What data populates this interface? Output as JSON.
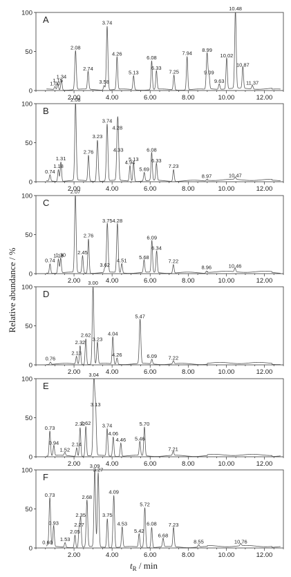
{
  "figure": {
    "y_axis_label": "Relative abundance / %",
    "x_axis_label_symbol": "t",
    "x_axis_label_subscript": "R",
    "x_axis_label_unit": " / min"
  },
  "chart_data": [
    {
      "type": "line",
      "panel": "A",
      "xlim": [
        0,
        13
      ],
      "ylim": [
        0,
        100
      ],
      "xticks": [
        "2.00",
        "4.00",
        "6.00",
        "8.00",
        "10.00",
        "12.00"
      ],
      "yticks": [
        "0",
        "50",
        "100"
      ],
      "peaks": [
        {
          "rt": 1.0,
          "abundance": 4,
          "label": "1.00"
        },
        {
          "rt": 1.15,
          "abundance": 8,
          "label": "1.15"
        },
        {
          "rt": 1.34,
          "abundance": 13,
          "label": "1.34"
        },
        {
          "rt": 2.08,
          "abundance": 50,
          "label": "2.08"
        },
        {
          "rt": 2.74,
          "abundance": 23,
          "label": "2.74"
        },
        {
          "rt": 3.58,
          "abundance": 6,
          "label": "3.58"
        },
        {
          "rt": 3.74,
          "abundance": 82,
          "label": "3.74"
        },
        {
          "rt": 4.26,
          "abundance": 42,
          "label": "4.26"
        },
        {
          "rt": 5.13,
          "abundance": 18,
          "label": "5.13"
        },
        {
          "rt": 6.08,
          "abundance": 37,
          "label": "6.08"
        },
        {
          "rt": 6.33,
          "abundance": 24,
          "label": "6.33"
        },
        {
          "rt": 7.25,
          "abundance": 19,
          "label": "7.25"
        },
        {
          "rt": 7.94,
          "abundance": 43,
          "label": "7.94"
        },
        {
          "rt": 8.99,
          "abundance": 47,
          "label": "8.99"
        },
        {
          "rt": 9.09,
          "abundance": 18,
          "label": "9.09"
        },
        {
          "rt": 9.63,
          "abundance": 7,
          "label": "9.63"
        },
        {
          "rt": 10.02,
          "abundance": 40,
          "label": "10.02"
        },
        {
          "rt": 10.48,
          "abundance": 100,
          "label": "10.48"
        },
        {
          "rt": 10.87,
          "abundance": 28,
          "label": "10.87"
        },
        {
          "rt": 11.37,
          "abundance": 5,
          "label": "11.37"
        }
      ]
    },
    {
      "type": "line",
      "panel": "B",
      "xlim": [
        0,
        13
      ],
      "ylim": [
        0,
        100
      ],
      "xticks": [
        "2.00",
        "4.00",
        "6.00",
        "8.00",
        "10.00",
        "12.00"
      ],
      "yticks": [
        "0",
        "50",
        "100"
      ],
      "peaks": [
        {
          "rt": 0.74,
          "abundance": 8,
          "label": "0.74"
        },
        {
          "rt": 1.18,
          "abundance": 15,
          "label": "1.18"
        },
        {
          "rt": 1.31,
          "abundance": 25,
          "label": "1.31"
        },
        {
          "rt": 2.08,
          "abundance": 100,
          "label": "2.08"
        },
        {
          "rt": 2.76,
          "abundance": 33,
          "label": "2.76"
        },
        {
          "rt": 3.23,
          "abundance": 53,
          "label": "3.23"
        },
        {
          "rt": 3.74,
          "abundance": 73,
          "label": "3.74"
        },
        {
          "rt": 4.28,
          "abundance": 64,
          "label": "4.28"
        },
        {
          "rt": 4.33,
          "abundance": 36,
          "label": "4.33"
        },
        {
          "rt": 4.94,
          "abundance": 20,
          "label": "4.94"
        },
        {
          "rt": 5.13,
          "abundance": 24,
          "label": "5.13"
        },
        {
          "rt": 5.69,
          "abundance": 11,
          "label": "5.69"
        },
        {
          "rt": 6.08,
          "abundance": 36,
          "label": "6.08"
        },
        {
          "rt": 6.33,
          "abundance": 22,
          "label": "6.33"
        },
        {
          "rt": 7.23,
          "abundance": 15,
          "label": "7.23"
        },
        {
          "rt": 8.97,
          "abundance": 2,
          "label": "8.97"
        },
        {
          "rt": 10.47,
          "abundance": 3,
          "label": "10.47"
        }
      ]
    },
    {
      "type": "line",
      "panel": "C",
      "xlim": [
        0,
        13
      ],
      "ylim": [
        0,
        100
      ],
      "xticks": [
        "2.00",
        "4.00",
        "6.00",
        "8.00",
        "10.00",
        "12.00"
      ],
      "yticks": [
        "0",
        "50",
        "100"
      ],
      "peaks": [
        {
          "rt": 0.74,
          "abundance": 12,
          "label": "0.74"
        },
        {
          "rt": 1.18,
          "abundance": 18,
          "label": "1.18"
        },
        {
          "rt": 1.3,
          "abundance": 19,
          "label": "1.30"
        },
        {
          "rt": 2.07,
          "abundance": 100,
          "label": "2.07"
        },
        {
          "rt": 2.45,
          "abundance": 22,
          "label": "2.45"
        },
        {
          "rt": 2.76,
          "abundance": 44,
          "label": "2.76"
        },
        {
          "rt": 3.62,
          "abundance": 6,
          "label": "3.62"
        },
        {
          "rt": 3.75,
          "abundance": 63,
          "label": "3.75"
        },
        {
          "rt": 4.28,
          "abundance": 63,
          "label": "4.28"
        },
        {
          "rt": 4.51,
          "abundance": 12,
          "label": "4.51"
        },
        {
          "rt": 5.68,
          "abundance": 16,
          "label": "5.68"
        },
        {
          "rt": 6.09,
          "abundance": 41,
          "label": "6.09"
        },
        {
          "rt": 6.34,
          "abundance": 28,
          "label": "6.34"
        },
        {
          "rt": 7.22,
          "abundance": 11,
          "label": "7.22"
        },
        {
          "rt": 8.96,
          "abundance": 3,
          "label": "8.96"
        },
        {
          "rt": 10.46,
          "abundance": 5,
          "label": "10.46"
        }
      ]
    },
    {
      "type": "line",
      "panel": "D",
      "xlim": [
        0,
        13
      ],
      "ylim": [
        0,
        100
      ],
      "xticks": [
        "2.00",
        "4.00",
        "6.00",
        "8.00",
        "10.00",
        "12.00"
      ],
      "yticks": [
        "0",
        "50",
        "100"
      ],
      "peaks": [
        {
          "rt": 0.76,
          "abundance": 3,
          "label": "0.76"
        },
        {
          "rt": 2.13,
          "abundance": 10,
          "label": "2.13"
        },
        {
          "rt": 2.32,
          "abundance": 24,
          "label": "2.32"
        },
        {
          "rt": 2.62,
          "abundance": 33,
          "label": "2.62"
        },
        {
          "rt": 3.0,
          "abundance": 100,
          "label": "3.00"
        },
        {
          "rt": 3.23,
          "abundance": 28,
          "label": "3.23"
        },
        {
          "rt": 4.04,
          "abundance": 35,
          "label": "4.04"
        },
        {
          "rt": 4.26,
          "abundance": 8,
          "label": "4.26"
        },
        {
          "rt": 5.47,
          "abundance": 57,
          "label": "5.47"
        },
        {
          "rt": 6.09,
          "abundance": 6,
          "label": "6.09"
        },
        {
          "rt": 7.22,
          "abundance": 4,
          "label": "7.22"
        }
      ]
    },
    {
      "type": "line",
      "panel": "E",
      "xlim": [
        0,
        13
      ],
      "ylim": [
        0,
        100
      ],
      "xticks": [
        "2.00",
        "4.00",
        "6.00",
        "8.00",
        "10.00",
        "12.00"
      ],
      "yticks": [
        "0",
        "50",
        "100"
      ],
      "peaks": [
        {
          "rt": 0.73,
          "abundance": 32,
          "label": "0.73"
        },
        {
          "rt": 0.94,
          "abundance": 13,
          "label": "0.94"
        },
        {
          "rt": 1.52,
          "abundance": 4,
          "label": "1.52"
        },
        {
          "rt": 2.14,
          "abundance": 11,
          "label": "2.14"
        },
        {
          "rt": 2.32,
          "abundance": 37,
          "label": "2.32"
        },
        {
          "rt": 2.62,
          "abundance": 38,
          "label": "2.62"
        },
        {
          "rt": 3.04,
          "abundance": 100,
          "label": "3.04"
        },
        {
          "rt": 3.13,
          "abundance": 62,
          "label": "3.13"
        },
        {
          "rt": 3.74,
          "abundance": 35,
          "label": "3.74"
        },
        {
          "rt": 4.06,
          "abundance": 25,
          "label": "4.06"
        },
        {
          "rt": 4.46,
          "abundance": 17,
          "label": "4.46"
        },
        {
          "rt": 5.46,
          "abundance": 18,
          "label": "5.46"
        },
        {
          "rt": 5.7,
          "abundance": 37,
          "label": "5.70"
        },
        {
          "rt": 7.21,
          "abundance": 5,
          "label": "7.21"
        }
      ]
    },
    {
      "type": "line",
      "panel": "F",
      "xlim": [
        0,
        13
      ],
      "ylim": [
        0,
        100
      ],
      "xticks": [
        "2.00",
        "4.00",
        "6.00",
        "8.00",
        "10.00",
        "12.00"
      ],
      "yticks": [
        "0",
        "50",
        "100"
      ],
      "peaks": [
        {
          "rt": 0.6,
          "abundance": 2,
          "label": "0.60"
        },
        {
          "rt": 0.73,
          "abundance": 63,
          "label": "0.73"
        },
        {
          "rt": 0.93,
          "abundance": 27,
          "label": "0.93"
        },
        {
          "rt": 1.53,
          "abundance": 6,
          "label": "1.53"
        },
        {
          "rt": 2.05,
          "abundance": 16,
          "label": "2.05"
        },
        {
          "rt": 2.27,
          "abundance": 25,
          "label": "2.27"
        },
        {
          "rt": 2.35,
          "abundance": 37,
          "label": "2.35"
        },
        {
          "rt": 2.68,
          "abundance": 60,
          "label": "2.68"
        },
        {
          "rt": 3.09,
          "abundance": 100,
          "label": "3.09"
        },
        {
          "rt": 3.27,
          "abundance": 95,
          "label": "3.27"
        },
        {
          "rt": 3.75,
          "abundance": 37,
          "label": "3.75"
        },
        {
          "rt": 4.09,
          "abundance": 67,
          "label": "4.09"
        },
        {
          "rt": 4.53,
          "abundance": 26,
          "label": "4.53"
        },
        {
          "rt": 5.42,
          "abundance": 17,
          "label": "5.42"
        },
        {
          "rt": 5.72,
          "abundance": 51,
          "label": "5.72"
        },
        {
          "rt": 6.08,
          "abundance": 26,
          "label": "6.08"
        },
        {
          "rt": 6.68,
          "abundance": 11,
          "label": "6.68"
        },
        {
          "rt": 7.23,
          "abundance": 25,
          "label": "7.23"
        },
        {
          "rt": 8.55,
          "abundance": 3,
          "label": "8.55"
        },
        {
          "rt": 10.76,
          "abundance": 3,
          "label": "10.76"
        }
      ]
    }
  ]
}
